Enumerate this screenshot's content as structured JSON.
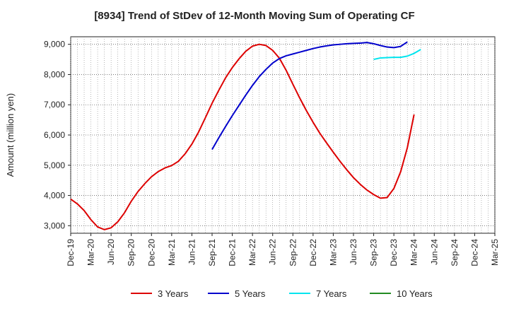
{
  "chart_data": {
    "type": "line",
    "title": "[8934]  Trend of StDev of 12-Month Moving Sum of Operating CF",
    "xlabel": "",
    "ylabel": "Amount (million yen)",
    "ylim": [
      2750,
      9250
    ],
    "yticks": [
      3000,
      4000,
      5000,
      6000,
      7000,
      8000,
      9000
    ],
    "ytick_labels": [
      "3,000",
      "4,000",
      "5,000",
      "6,000",
      "7,000",
      "8,000",
      "9,000"
    ],
    "x_start": "2019-12",
    "x_end": "2025-03",
    "xtick_labels": [
      "Dec-19",
      "Mar-20",
      "Jun-20",
      "Sep-20",
      "Dec-20",
      "Mar-21",
      "Jun-21",
      "Sep-21",
      "Dec-21",
      "Mar-22",
      "Jun-22",
      "Sep-22",
      "Dec-22",
      "Mar-23",
      "Jun-23",
      "Sep-23",
      "Dec-23",
      "Mar-24",
      "Jun-24",
      "Sep-24",
      "Dec-24",
      "Mar-25"
    ],
    "grid": true,
    "legend_position": "bottom",
    "series": [
      {
        "name": "3 Years",
        "color": "#dd0000",
        "start": "2019-12",
        "values": [
          3880,
          3720,
          3500,
          3200,
          2960,
          2870,
          2930,
          3130,
          3430,
          3810,
          4130,
          4390,
          4620,
          4790,
          4910,
          4990,
          5130,
          5380,
          5700,
          6100,
          6570,
          7050,
          7480,
          7890,
          8230,
          8520,
          8770,
          8940,
          9000,
          8960,
          8800,
          8540,
          8140,
          7680,
          7230,
          6810,
          6420,
          6060,
          5740,
          5430,
          5130,
          4850,
          4590,
          4370,
          4180,
          4030,
          3910,
          3930,
          4230,
          4780,
          5580,
          6680
        ]
      },
      {
        "name": "5 Years",
        "color": "#0000cc",
        "start": "2021-09",
        "values": [
          5520,
          5910,
          6280,
          6640,
          6980,
          7320,
          7640,
          7930,
          8170,
          8380,
          8530,
          8620,
          8680,
          8740,
          8800,
          8860,
          8910,
          8950,
          8980,
          9000,
          9020,
          9030,
          9040,
          9060,
          9020,
          8960,
          8910,
          8890,
          8930,
          9080
        ]
      },
      {
        "name": "7 Years",
        "color": "#00e5ee",
        "start": "2023-09",
        "values": [
          8500,
          8550,
          8560,
          8570,
          8570,
          8610,
          8700,
          8830
        ]
      },
      {
        "name": "10 Years",
        "color": "#228b22",
        "start": "2024-03",
        "values": []
      }
    ]
  }
}
